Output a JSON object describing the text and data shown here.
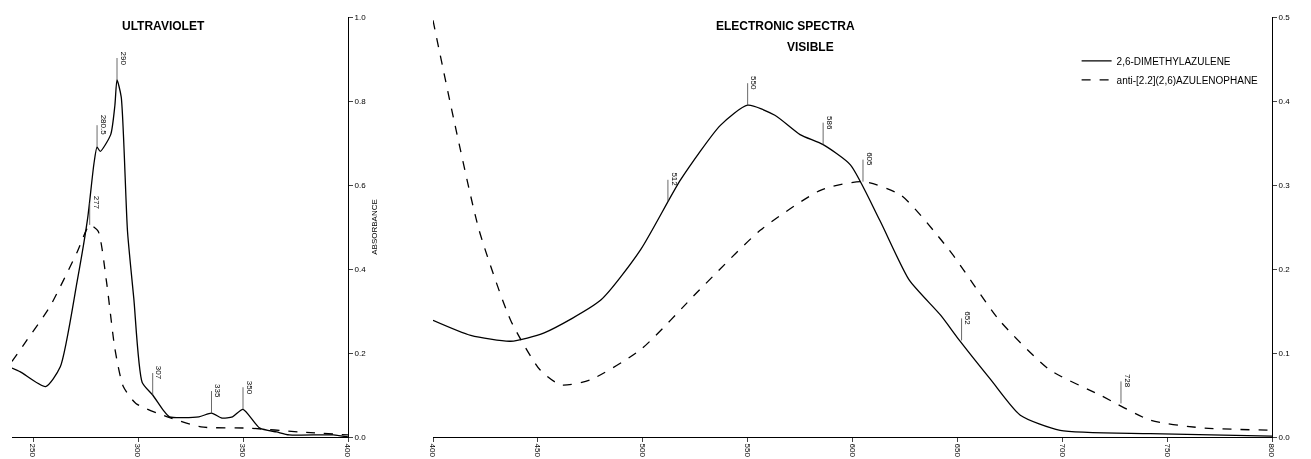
{
  "chart_data": [
    {
      "type": "line",
      "title": "ULTRAVIOLET",
      "ylabel": "ABSORBANCE",
      "xlim": [
        240,
        400
      ],
      "xticks": [
        250,
        300,
        350,
        400
      ],
      "ylim": [
        0,
        1
      ],
      "yticks": [
        {
          "value": 0,
          "label": "0.0"
        },
        {
          "value": 0.2,
          "label": "0.2"
        },
        {
          "value": 0.4,
          "label": "0.4"
        },
        {
          "value": 0.6,
          "label": "0.6"
        },
        {
          "value": 0.8,
          "label": "0.8"
        },
        {
          "value": 1,
          "label": "1.0"
        }
      ],
      "grid": false,
      "legend": false,
      "marker": "none",
      "series": [
        {
          "color": "#000000",
          "line_style": "solid",
          "x": [
            240,
            244,
            256,
            263,
            271,
            276,
            279,
            280.5,
            282,
            287,
            289,
            290,
            292,
            295,
            298,
            302,
            307,
            312,
            315,
            329,
            335,
            340,
            345,
            350,
            358,
            366,
            372,
            393,
            400
          ],
          "values": [
            0.164,
            0.155,
            0.12,
            0.167,
            0.37,
            0.52,
            0.65,
            0.69,
            0.68,
            0.72,
            0.79,
            0.85,
            0.81,
            0.49,
            0.33,
            0.13,
            0.1,
            0.064,
            0.048,
            0.048,
            0.057,
            0.045,
            0.048,
            0.066,
            0.021,
            0.012,
            0.005,
            0.005,
            0
          ]
        },
        {
          "color": "#000000",
          "line_style": "dashed",
          "x": [
            240,
            247,
            258,
            271,
            277,
            281,
            285,
            289,
            293,
            299,
            314,
            330,
            353,
            377,
            400
          ],
          "values": [
            0.18,
            0.23,
            0.31,
            0.44,
            0.505,
            0.49,
            0.37,
            0.21,
            0.12,
            0.08,
            0.048,
            0.024,
            0.021,
            0.012,
            0.005
          ]
        }
      ],
      "annotations": [
        {
          "text": "277",
          "x": 277,
          "y": 0.505
        },
        {
          "text": "280.5",
          "x": 280.5,
          "y": 0.69
        },
        {
          "text": "290",
          "x": 290,
          "y": 0.85
        },
        {
          "text": "307",
          "x": 307,
          "y": 0.1
        },
        {
          "text": "335",
          "x": 335,
          "y": 0.057
        },
        {
          "text": "350",
          "x": 350,
          "y": 0.066
        }
      ]
    },
    {
      "type": "line",
      "title": "ELECTRONIC SPECTRA",
      "subtitle": "VISIBLE",
      "xlim": [
        400,
        800
      ],
      "xticks": [
        400,
        450,
        500,
        550,
        600,
        650,
        700,
        750,
        800
      ],
      "ylim": [
        0,
        0.5
      ],
      "yticks": [
        {
          "value": 0,
          "label": "0.0"
        },
        {
          "value": 0.1,
          "label": "0.1"
        },
        {
          "value": 0.2,
          "label": "0.2"
        },
        {
          "value": 0.3,
          "label": "0.3"
        },
        {
          "value": 0.4,
          "label": "0.4"
        },
        {
          "value": 0.5,
          "label": "0.5"
        }
      ],
      "grid": false,
      "legend": "top right",
      "marker": "none",
      "series": [
        {
          "name": "2,6-DIMETHYLAZULENE",
          "color": "#000000",
          "line_style": "solid",
          "x": [
            400,
            418,
            437,
            453,
            480,
            499,
            518,
            537,
            550,
            563,
            575,
            586,
            599,
            613,
            627,
            642,
            651,
            666,
            680,
            699,
            742,
            800
          ],
          "values": [
            0.139,
            0.121,
            0.114,
            0.124,
            0.163,
            0.223,
            0.306,
            0.371,
            0.395,
            0.383,
            0.36,
            0.348,
            0.324,
            0.258,
            0.187,
            0.145,
            0.115,
            0.068,
            0.026,
            0.008,
            0.004,
            0.001
          ]
        },
        {
          "name": "anti-[2.2](2,6)AZULENOPHANE",
          "color": "#000000",
          "line_style": "dashed",
          "x": [
            400,
            410,
            422,
            437,
            451,
            461,
            475,
            499,
            527,
            556,
            585,
            605,
            623,
            646,
            670,
            694,
            718,
            742,
            766,
            800
          ],
          "values": [
            0.496,
            0.377,
            0.246,
            0.139,
            0.08,
            0.062,
            0.068,
            0.104,
            0.175,
            0.246,
            0.294,
            0.304,
            0.288,
            0.223,
            0.139,
            0.08,
            0.05,
            0.02,
            0.011,
            0.008
          ]
        }
      ],
      "annotations": [
        {
          "text": "512",
          "x": 512,
          "y": 0.28
        },
        {
          "text": "550",
          "x": 550,
          "y": 0.395
        },
        {
          "text": "586",
          "x": 586,
          "y": 0.348
        },
        {
          "text": "605",
          "x": 605,
          "y": 0.304
        },
        {
          "text": "652",
          "x": 652,
          "y": 0.115
        },
        {
          "text": "728",
          "x": 728,
          "y": 0.04
        }
      ]
    }
  ]
}
